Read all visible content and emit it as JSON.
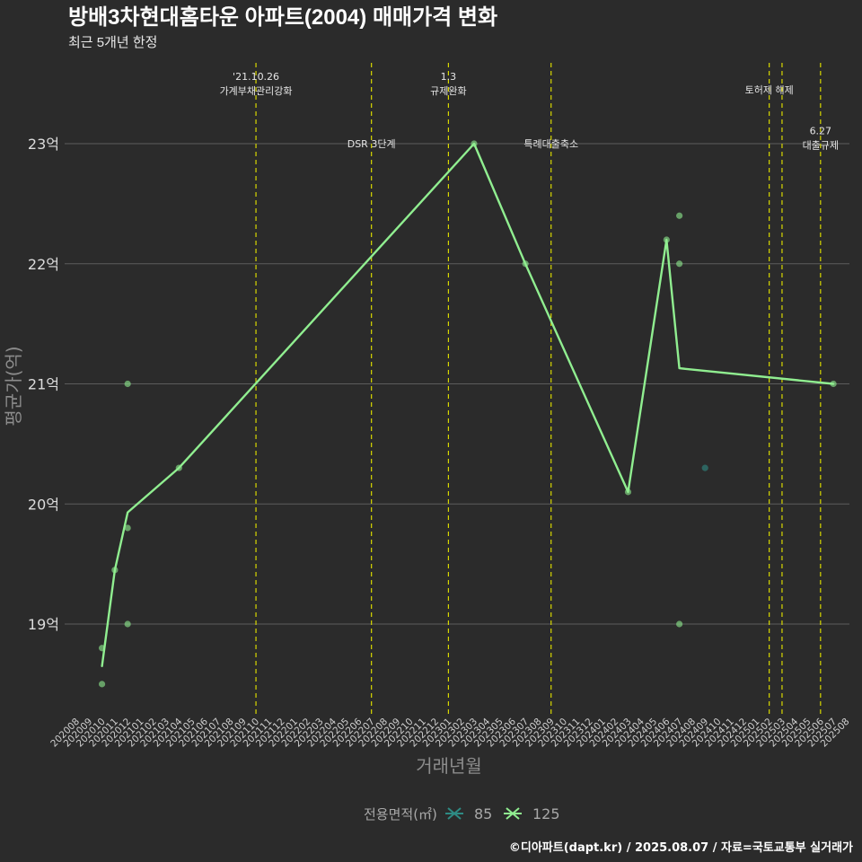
{
  "title": "방배3차현대홈타운 아파트(2004) 매매가격 변화",
  "subtitle": "최근 5개년 한정",
  "caption": "©디아파트(dapt.kr) / 2025.08.07 / 자료=국토교통부 실거래가",
  "colors": {
    "background": "#2b2b2b",
    "grid": "#5c5c5c",
    "event_line": "#d8d800",
    "series_125": "#90ee90",
    "series_85": "#2e8b84"
  },
  "chart_data": {
    "type": "line",
    "xlabel": "거래년월",
    "ylabel": "평균가(억)",
    "ylim": [
      18.3,
      23.5
    ],
    "yticks": [
      {
        "value": 19,
        "label": "19억"
      },
      {
        "value": 20,
        "label": "20억"
      },
      {
        "value": 21,
        "label": "21억"
      },
      {
        "value": 22,
        "label": "22억"
      },
      {
        "value": 23,
        "label": "23억"
      }
    ],
    "x_categories": [
      "202008",
      "202009",
      "202010",
      "202011",
      "202012",
      "202101",
      "202102",
      "202103",
      "202104",
      "202105",
      "202106",
      "202107",
      "202108",
      "202109",
      "202110",
      "202111",
      "202112",
      "202201",
      "202202",
      "202203",
      "202204",
      "202205",
      "202206",
      "202207",
      "202208",
      "202209",
      "202210",
      "202211",
      "202212",
      "202301",
      "202302",
      "202303",
      "202304",
      "202305",
      "202306",
      "202307",
      "202308",
      "202309",
      "202310",
      "202311",
      "202312",
      "202401",
      "202402",
      "202403",
      "202404",
      "202405",
      "202406",
      "202407",
      "202408",
      "202409",
      "202410",
      "202411",
      "202412",
      "202501",
      "202502",
      "202503",
      "202504",
      "202505",
      "202506",
      "202507",
      "202508"
    ],
    "legend": {
      "title": "전용면적(㎡)",
      "items": [
        {
          "label": "85",
          "color": "#2e8b84"
        },
        {
          "label": "125",
          "color": "#90ee90"
        }
      ]
    },
    "series": [
      {
        "name": "125",
        "color": "#90ee90",
        "line": [
          {
            "x": "202010",
            "y": 18.65
          },
          {
            "x": "202011",
            "y": 19.45
          },
          {
            "x": "202012",
            "y": 19.93
          },
          {
            "x": "202104",
            "y": 20.3
          },
          {
            "x": "202303",
            "y": 23.0
          },
          {
            "x": "202307",
            "y": 22.0
          },
          {
            "x": "202403",
            "y": 20.1
          },
          {
            "x": "202406",
            "y": 22.2
          },
          {
            "x": "202407",
            "y": 21.13
          },
          {
            "x": "202507",
            "y": 21.0
          }
        ],
        "points": [
          {
            "x": "202010",
            "y": 18.8
          },
          {
            "x": "202010",
            "y": 18.5
          },
          {
            "x": "202011",
            "y": 19.45
          },
          {
            "x": "202012",
            "y": 21.0
          },
          {
            "x": "202012",
            "y": 19.8
          },
          {
            "x": "202012",
            "y": 19.0
          },
          {
            "x": "202104",
            "y": 20.3
          },
          {
            "x": "202303",
            "y": 23.0
          },
          {
            "x": "202307",
            "y": 22.0
          },
          {
            "x": "202403",
            "y": 20.1
          },
          {
            "x": "202406",
            "y": 22.2
          },
          {
            "x": "202407",
            "y": 22.4
          },
          {
            "x": "202407",
            "y": 22.0
          },
          {
            "x": "202407",
            "y": 19.0
          },
          {
            "x": "202507",
            "y": 21.0
          }
        ]
      },
      {
        "name": "85",
        "color": "#2e8b84",
        "line": [],
        "points": [
          {
            "x": "202409",
            "y": 20.3
          }
        ]
      }
    ],
    "events": [
      {
        "x": "202110",
        "lines": [
          "'21.10.26",
          "가계부채관리강화"
        ],
        "label_y": 23.5
      },
      {
        "x": "202207",
        "lines": [
          "DSR 3단계"
        ],
        "label_y": 23.0
      },
      {
        "x": "202301",
        "lines": [
          "1.3",
          "규제완화"
        ],
        "label_y": 23.5
      },
      {
        "x": "202309",
        "lines": [
          "특례대출축소"
        ],
        "label_y": 23.0
      },
      {
        "x": "202502",
        "lines": [
          "토허제 해제"
        ],
        "label_y": 23.45
      },
      {
        "x": "202503",
        "lines": [],
        "label_y": 23.45
      },
      {
        "x": "202506",
        "lines": [
          "6.27",
          "대출규제"
        ],
        "label_y": 23.05
      }
    ]
  }
}
